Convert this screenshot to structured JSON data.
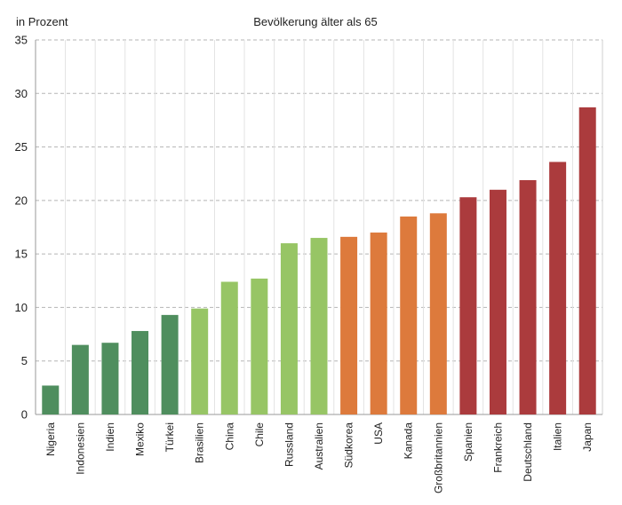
{
  "chart_data": {
    "type": "bar",
    "title": "Bevölkerung älter als 65",
    "ylabel": "in Prozent",
    "xlabel": "",
    "ylim": [
      0,
      35
    ],
    "yticks": [
      0,
      5,
      10,
      15,
      20,
      25,
      30,
      35
    ],
    "grid": true,
    "categories": [
      "Nigeria",
      "Indonesien",
      "Indien",
      "Mexiko",
      "Türkei",
      "Brasilien",
      "China",
      "Chile",
      "Russland",
      "Australien",
      "Südkorea",
      "USA",
      "Kanada",
      "Großbritannien",
      "Spanien",
      "Frankreich",
      "Deutschland",
      "Italien",
      "Japan"
    ],
    "values": [
      2.7,
      6.5,
      6.7,
      7.8,
      9.3,
      9.9,
      12.4,
      12.7,
      16.0,
      16.5,
      16.6,
      17.0,
      18.5,
      18.8,
      20.3,
      21.0,
      21.9,
      23.6,
      28.7
    ],
    "colors": [
      "#4f8e5e",
      "#4f8e5e",
      "#4f8e5e",
      "#4f8e5e",
      "#4f8e5e",
      "#97c565",
      "#97c565",
      "#97c565",
      "#97c565",
      "#97c565",
      "#dd7a3c",
      "#dd7a3c",
      "#dd7a3c",
      "#dd7a3c",
      "#ab3b3d",
      "#ab3b3d",
      "#ab3b3d",
      "#ab3b3d",
      "#ab3b3d"
    ]
  }
}
